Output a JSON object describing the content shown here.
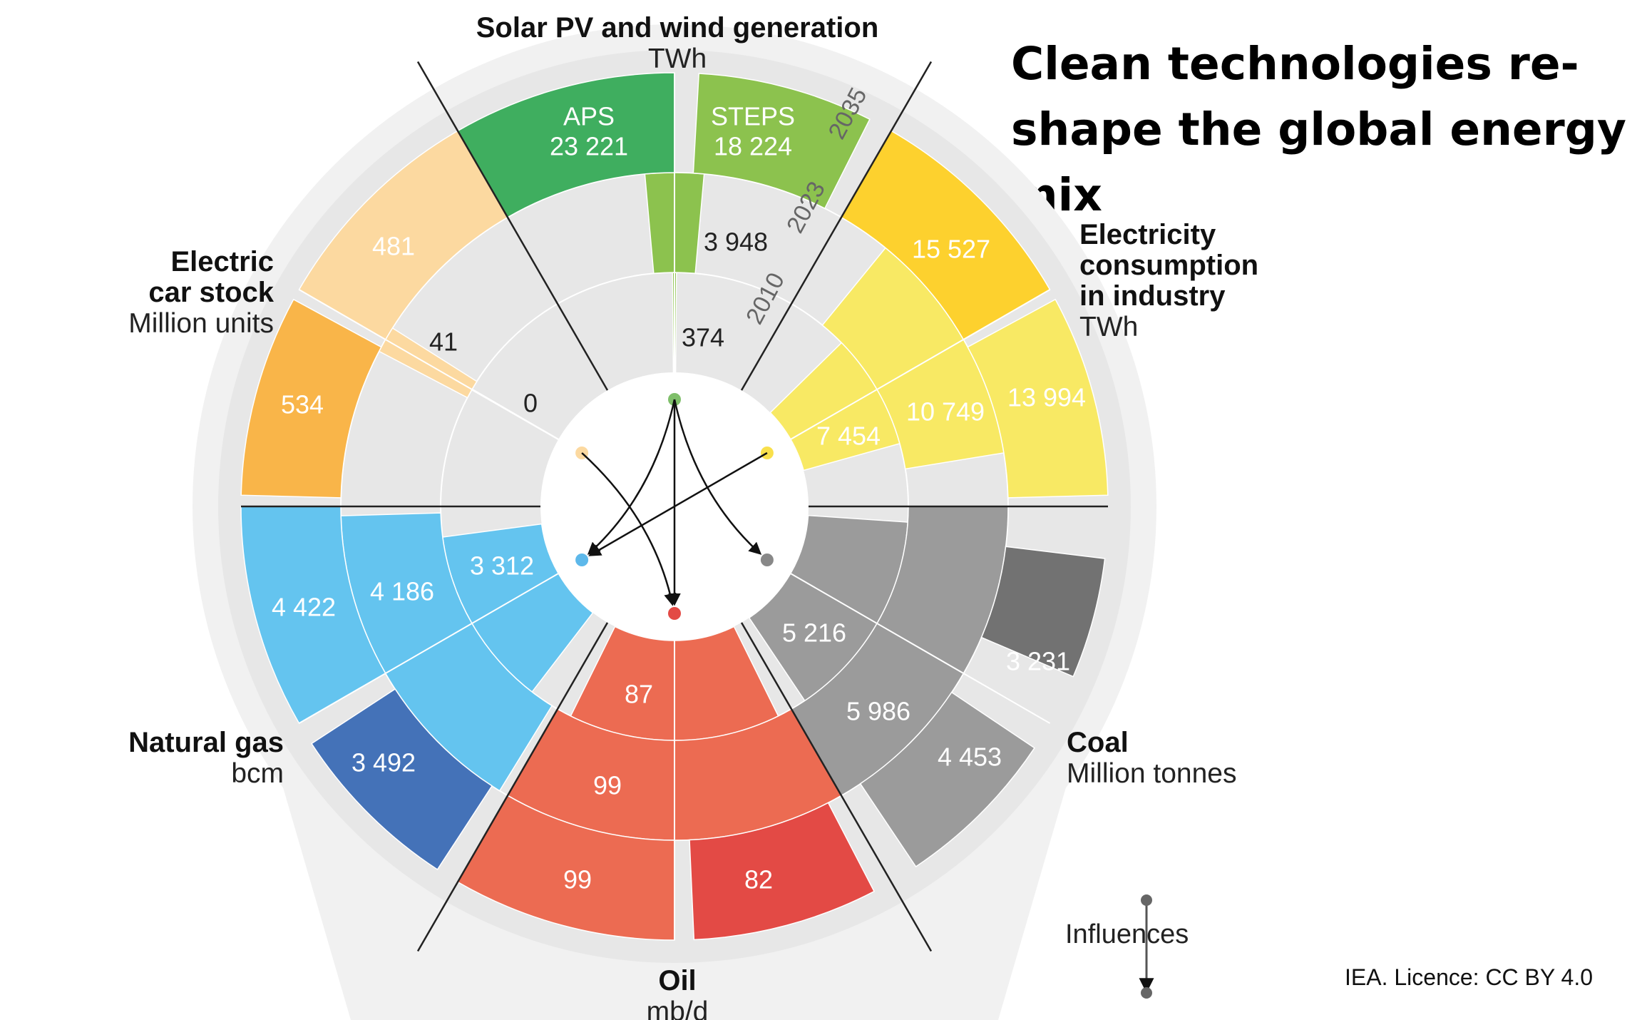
{
  "title": "Clean technologies re-shape the global energy mix",
  "license": "IEA. Licence: CC BY 4.0",
  "legend": {
    "label": "Influences"
  },
  "chart_data": {
    "type": "radial-bar",
    "years": [
      "2010",
      "2023",
      "2035"
    ],
    "scenarios": [
      "APS",
      "STEPS"
    ],
    "categories": [
      {
        "id": "solar",
        "title": "Solar PV and wind generation",
        "unit": "TWh",
        "color_steps": "#8CC24E",
        "color_aps": "#3FAE5F",
        "values": {
          "2010": "374",
          "2023": "3 948",
          "2035_aps": "23 221",
          "2035_steps": "18 224"
        }
      },
      {
        "id": "industry",
        "title": "Electricity consumption in industry",
        "title_lines": [
          "Electricity",
          "consumption",
          "in industry"
        ],
        "unit": "TWh",
        "color_light": "#F8E964",
        "color_dark": "#FDD12E",
        "values": {
          "2010": "7 454",
          "2023": "10 749",
          "2035_aps": "15 527",
          "2035_steps": "13 994"
        }
      },
      {
        "id": "coal",
        "title": "Coal",
        "unit": "Million tonnes",
        "color_light": "#9B9B9B",
        "color_dark": "#727272",
        "values": {
          "2010": "5 216",
          "2023": "5 986",
          "2035_aps": "3 231",
          "2035_steps": "4 453"
        }
      },
      {
        "id": "oil",
        "title": "Oil",
        "unit": "mb/d",
        "color_light": "#EC6B52",
        "color_dark": "#E34A45",
        "values": {
          "2010": "87",
          "2023": "99",
          "2035_aps": "82",
          "2035_steps": "99"
        }
      },
      {
        "id": "gas",
        "title": "Natural gas",
        "unit": "bcm",
        "color_light": "#64C4EF",
        "color_dark": "#4472B8",
        "values": {
          "2010": "3 312",
          "2023": "4 186",
          "2035_aps": "3 492",
          "2035_steps": "4 422"
        }
      },
      {
        "id": "ev",
        "title": "Electric car stock",
        "title_lines": [
          "Electric",
          "car stock"
        ],
        "unit": "Million units",
        "color_light": "#FCD9A0",
        "color_dark": "#F9B549",
        "values": {
          "2010": "0",
          "2023": "41",
          "2035_aps": "481",
          "2035_steps": "534"
        }
      }
    ],
    "influences": [
      {
        "from": "solar",
        "to": "gas"
      },
      {
        "from": "solar",
        "to": "coal"
      },
      {
        "from": "solar",
        "to": "oil"
      },
      {
        "from": "industry",
        "to": "gas"
      },
      {
        "from": "ev",
        "to": "oil"
      }
    ]
  }
}
